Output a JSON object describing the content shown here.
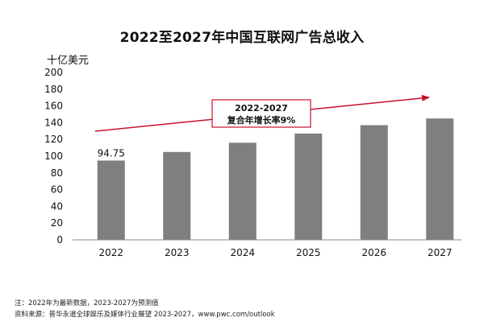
{
  "chart_data": {
    "type": "bar",
    "title": "2022至2027年中国互联网广告总收入",
    "ylabel": "十亿美元",
    "xlabel": "",
    "categories": [
      "2022",
      "2023",
      "2024",
      "2025",
      "2026",
      "2027"
    ],
    "values": [
      94.75,
      105,
      116,
      127,
      137,
      145
    ],
    "data_labels": [
      "94.75",
      "",
      "",
      "",
      "",
      ""
    ],
    "ylim": [
      0,
      200
    ],
    "yticks": [
      0,
      20,
      40,
      60,
      80,
      100,
      120,
      140,
      160,
      180,
      200
    ],
    "bar_color": "#7f7f7f",
    "grid": false,
    "annotation": {
      "line1": "2022-2027",
      "line2": "复合年增长率9%",
      "color": "#c8102e"
    }
  },
  "footnotes": {
    "note": "注：2022年为最新数据，2023-2027为预测值",
    "source": "资料来源：普华永道全球娱乐及媒体行业展望 2023-2027，www.pwc.com/outlook"
  }
}
